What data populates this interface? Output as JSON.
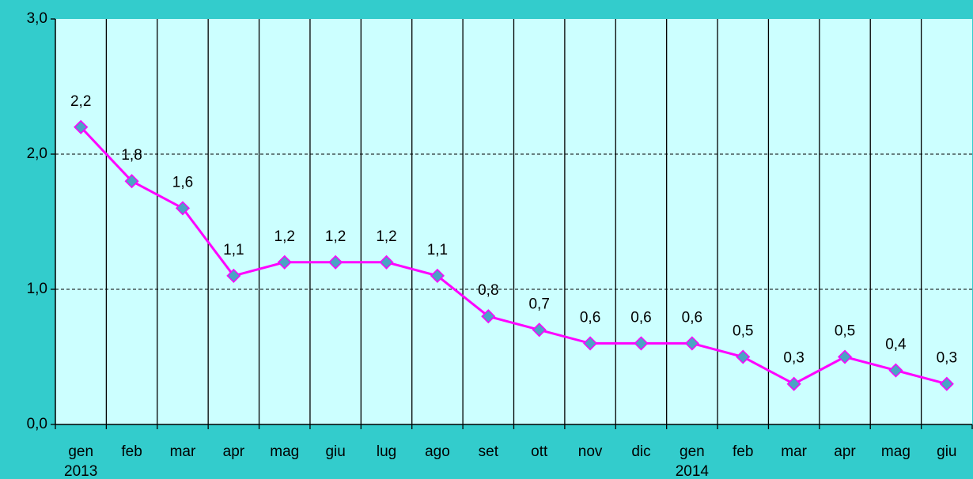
{
  "chart_data": {
    "type": "line",
    "categories": [
      "gen",
      "feb",
      "mar",
      "apr",
      "mag",
      "giu",
      "lug",
      "ago",
      "set",
      "ott",
      "nov",
      "dic",
      "gen",
      "feb",
      "mar",
      "apr",
      "mag",
      "giu"
    ],
    "x_groups": [
      {
        "label": "2013",
        "start": 0
      },
      {
        "label": "2014",
        "start": 12
      }
    ],
    "series": [
      {
        "color": "#ff00ff",
        "marker_color": "#4aa3c4",
        "values": [
          2.2,
          1.8,
          1.6,
          1.1,
          1.2,
          1.2,
          1.2,
          1.1,
          0.8,
          0.7,
          0.6,
          0.6,
          0.6,
          0.5,
          0.3,
          0.5,
          0.4,
          0.3
        ],
        "value_labels": [
          "2,2",
          "1,8",
          "1,6",
          "1,1",
          "1,2",
          "1,2",
          "1,2",
          "1,1",
          "0,8",
          "0,7",
          "0,6",
          "0,6",
          "0,6",
          "0,5",
          "0,3",
          "0,5",
          "0,4",
          "0,3"
        ]
      }
    ],
    "ylim": [
      0,
      3
    ],
    "yticks": [
      {
        "value": 0,
        "label": "0,0"
      },
      {
        "value": 1,
        "label": "1,0"
      },
      {
        "value": 2,
        "label": "2,0"
      },
      {
        "value": 3,
        "label": "3,0"
      }
    ],
    "grid": true,
    "plot_color": "#ccffff"
  }
}
